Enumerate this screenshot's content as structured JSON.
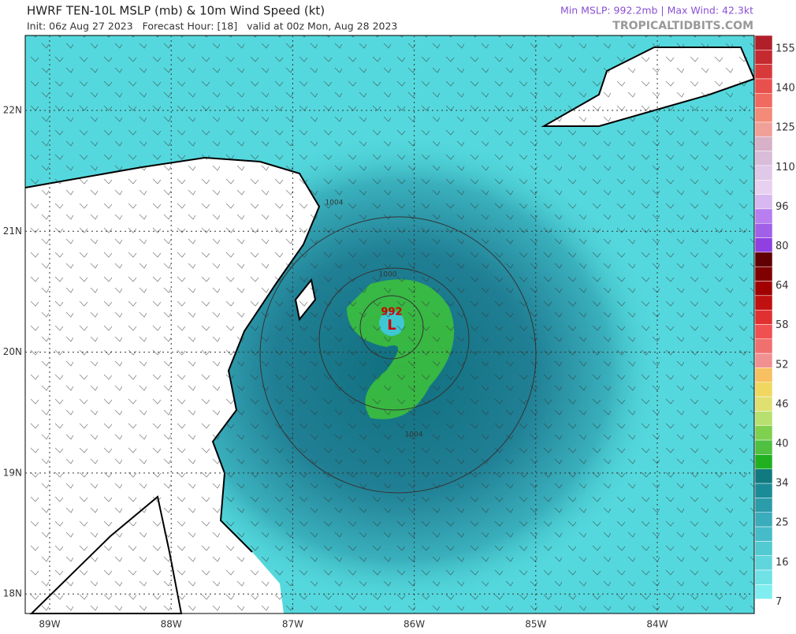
{
  "header": {
    "title": "HWRF TEN-10L MSLP (mb) & 10m Wind Speed (kt)",
    "subtitle": "Init: 06z Aug 27 2023   Forecast Hour: [18]   valid at 00z Mon, Aug 28 2023",
    "stats": "Min MSLP: 992.2mb | Max Wind: 42.3kt",
    "source": "TROPICALTIDBITS.COM"
  },
  "map": {
    "lat_labels": [
      "22N",
      "21N",
      "20N",
      "19N",
      "18N"
    ],
    "lon_labels": [
      "89W",
      "88W",
      "87W",
      "86W",
      "85W",
      "84W"
    ],
    "low_pressure": "992",
    "low_marker": "L",
    "isobar_labels": [
      "1000",
      "1004",
      "1004"
    ]
  },
  "colorbar": {
    "labels": [
      "155",
      "140",
      "125",
      "110",
      "96",
      "80",
      "64",
      "58",
      "52",
      "46",
      "40",
      "34",
      "25",
      "16",
      "7"
    ]
  }
}
